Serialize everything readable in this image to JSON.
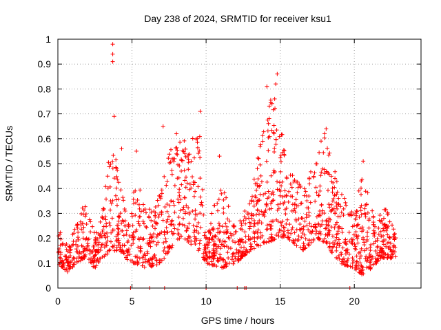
{
  "chart_data": {
    "type": "scatter",
    "title": "Day 238 of 2024, SRMTID for receiver ksu1",
    "xlabel": "GPS time / hours",
    "ylabel": "SRMTID / TECUs",
    "xlim": [
      0,
      24.5
    ],
    "ylim": [
      0,
      1
    ],
    "x_ticks": [
      0,
      5,
      10,
      15,
      20
    ],
    "x_tick_labels": [
      "0",
      "5",
      "10",
      "15",
      "20"
    ],
    "y_ticks": [
      0,
      0.1,
      0.2,
      0.3,
      0.4,
      0.5,
      0.6,
      0.7,
      0.8,
      0.9,
      1
    ],
    "y_tick_labels": [
      "0",
      "0.1",
      "0.2",
      "0.3",
      "0.4",
      "0.5",
      "0.6",
      "0.7",
      "0.8",
      "0.9",
      "1"
    ],
    "grid": true,
    "marker": "+",
    "marker_color": "#ff0000",
    "series": [
      {
        "name": "SRMTID",
        "envelope": [
          {
            "x": 0.0,
            "min": 0.1,
            "max": 0.25
          },
          {
            "x": 0.7,
            "min": 0.06,
            "max": 0.17
          },
          {
            "x": 1.2,
            "min": 0.1,
            "max": 0.25
          },
          {
            "x": 1.8,
            "min": 0.12,
            "max": 0.35
          },
          {
            "x": 2.5,
            "min": 0.08,
            "max": 0.22
          },
          {
            "x": 3.0,
            "min": 0.12,
            "max": 0.3
          },
          {
            "x": 3.6,
            "min": 0.15,
            "max": 0.62
          },
          {
            "x": 4.2,
            "min": 0.15,
            "max": 0.48
          },
          {
            "x": 4.8,
            "min": 0.1,
            "max": 0.25
          },
          {
            "x": 5.2,
            "min": 0.1,
            "max": 0.48
          },
          {
            "x": 6.0,
            "min": 0.08,
            "max": 0.3
          },
          {
            "x": 7.0,
            "min": 0.1,
            "max": 0.4
          },
          {
            "x": 7.5,
            "min": 0.15,
            "max": 0.55
          },
          {
            "x": 8.5,
            "min": 0.2,
            "max": 0.6
          },
          {
            "x": 9.5,
            "min": 0.15,
            "max": 0.68
          },
          {
            "x": 10.0,
            "min": 0.1,
            "max": 0.25
          },
          {
            "x": 11.0,
            "min": 0.08,
            "max": 0.43
          },
          {
            "x": 12.0,
            "min": 0.1,
            "max": 0.25
          },
          {
            "x": 13.0,
            "min": 0.15,
            "max": 0.35
          },
          {
            "x": 14.0,
            "min": 0.18,
            "max": 0.75
          },
          {
            "x": 14.8,
            "min": 0.2,
            "max": 0.8
          },
          {
            "x": 15.5,
            "min": 0.2,
            "max": 0.5
          },
          {
            "x": 16.5,
            "min": 0.15,
            "max": 0.4
          },
          {
            "x": 17.5,
            "min": 0.2,
            "max": 0.55
          },
          {
            "x": 18.0,
            "min": 0.18,
            "max": 0.63
          },
          {
            "x": 19.0,
            "min": 0.1,
            "max": 0.4
          },
          {
            "x": 20.0,
            "min": 0.08,
            "max": 0.3
          },
          {
            "x": 20.6,
            "min": 0.05,
            "max": 0.48
          },
          {
            "x": 21.5,
            "min": 0.1,
            "max": 0.25
          },
          {
            "x": 22.0,
            "min": 0.12,
            "max": 0.35
          },
          {
            "x": 22.8,
            "min": 0.12,
            "max": 0.22
          }
        ],
        "outliers": [
          {
            "x": 3.7,
            "y": 0.98
          },
          {
            "x": 3.7,
            "y": 0.94
          },
          {
            "x": 3.7,
            "y": 0.91
          },
          {
            "x": 3.8,
            "y": 0.69
          },
          {
            "x": 14.8,
            "y": 0.86
          },
          {
            "x": 14.7,
            "y": 0.82
          },
          {
            "x": 14.1,
            "y": 0.81
          },
          {
            "x": 9.6,
            "y": 0.71
          },
          {
            "x": 7.1,
            "y": 0.65
          },
          {
            "x": 18.1,
            "y": 0.64
          },
          {
            "x": 8.0,
            "y": 0.62
          },
          {
            "x": 5.3,
            "y": 0.55
          },
          {
            "x": 4.3,
            "y": 0.56
          },
          {
            "x": 10.9,
            "y": 0.53
          },
          {
            "x": 20.6,
            "y": 0.51
          }
        ],
        "zero_markers": [
          4.9,
          6.2,
          7.2,
          10.0,
          12.1,
          12.6,
          12.7,
          19.7
        ]
      }
    ]
  }
}
